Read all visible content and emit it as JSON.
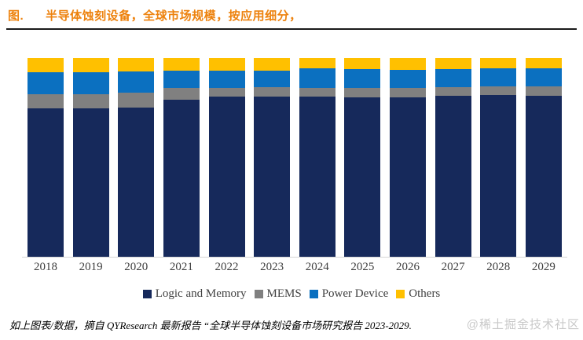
{
  "header": {
    "prefix": "图.",
    "title": "半导体蚀刻设备，全球市场规模，按应用细分，"
  },
  "chart_data": {
    "type": "bar",
    "stacked": true,
    "percent_stacked": true,
    "title": "半导体蚀刻设备，全球市场规模，按应用细分",
    "xlabel": "",
    "ylabel": "",
    "ylim": [
      0,
      100
    ],
    "grid": false,
    "y_axis_visible": false,
    "legend_position": "bottom",
    "categories": [
      "2018",
      "2019",
      "2020",
      "2021",
      "2022",
      "2023",
      "2024",
      "2025",
      "2026",
      "2027",
      "2028",
      "2029"
    ],
    "series": [
      {
        "name": "Logic and Memory",
        "color": "#16295B",
        "values": [
          74.6,
          74.6,
          75.0,
          79.2,
          80.5,
          80.6,
          80.5,
          80.1,
          80.4,
          80.9,
          81.4,
          81.1
        ]
      },
      {
        "name": "MEMS",
        "color": "#808080",
        "values": [
          7.1,
          7.1,
          7.5,
          5.7,
          4.6,
          4.8,
          4.4,
          4.8,
          4.6,
          4.5,
          4.4,
          4.6
        ]
      },
      {
        "name": "Power Device",
        "color": "#0B70C0",
        "values": [
          11.1,
          11.1,
          10.8,
          8.9,
          8.6,
          8.3,
          9.8,
          9.5,
          9.0,
          9.0,
          8.9,
          9.0
        ]
      },
      {
        "name": "Others",
        "color": "#FFC000",
        "values": [
          7.2,
          7.2,
          6.7,
          6.2,
          6.3,
          6.3,
          5.3,
          5.6,
          6.0,
          5.6,
          5.3,
          5.3
        ]
      }
    ]
  },
  "footer": {
    "source_note": "如上图表/数据，摘自 QYResearch 最新报告 “全球半导体蚀刻设备市场研究报告 2023-2029."
  },
  "watermark": {
    "text": "@稀土掘金技术社区"
  }
}
